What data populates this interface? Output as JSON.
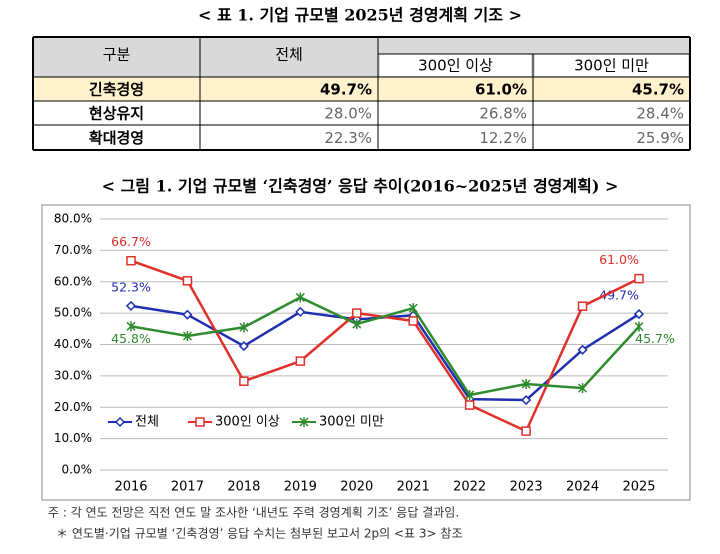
{
  "table": {
    "title": "< 표 1. 기업 규모별 2025년 경영계획 기조 >",
    "header": [
      "구분",
      "전체",
      "300인 이상",
      "300인 미만"
    ],
    "rows": [
      [
        "긴축경영",
        "49.7%",
        "61.0%",
        "45.7%"
      ],
      [
        "현상유지",
        "28.0%",
        "26.8%",
        "28.4%"
      ],
      [
        "확대경영",
        "22.3%",
        "12.2%",
        "25.9%"
      ]
    ]
  },
  "chart_data": {
    "type": "line",
    "title": "< 그림 1. 기업 규모별 ‘긴축경영’ 응답 추이(2016~2025년 경영계획) >",
    "categories": [
      "2016",
      "2017",
      "2018",
      "2019",
      "2020",
      "2021",
      "2022",
      "2023",
      "2024",
      "2025"
    ],
    "series": [
      {
        "name": "전체",
        "color": "#1f2fb0",
        "marker": "diamond",
        "values": [
          52.3,
          49.5,
          39.5,
          50.4,
          48.0,
          49.3,
          22.6,
          22.3,
          38.3,
          49.7
        ],
        "value_labels": [
          "52.3%",
          null,
          null,
          null,
          null,
          null,
          null,
          null,
          null,
          "49.7%"
        ]
      },
      {
        "name": "300인 이상",
        "color": "#e0302a",
        "marker": "square",
        "values": [
          66.7,
          60.3,
          28.3,
          34.7,
          50.0,
          47.5,
          20.7,
          12.4,
          52.2,
          61.0
        ],
        "value_labels": [
          "66.7%",
          null,
          null,
          null,
          null,
          null,
          null,
          null,
          null,
          "61.0%"
        ]
      },
      {
        "name": "300인 미만",
        "color": "#2e8b2e",
        "marker": "star",
        "values": [
          45.8,
          42.7,
          45.5,
          55.0,
          46.5,
          51.6,
          23.9,
          27.4,
          26.1,
          45.7
        ],
        "value_labels": [
          "45.8%",
          null,
          null,
          null,
          null,
          null,
          null,
          null,
          null,
          "45.7%"
        ]
      }
    ],
    "ylim": [
      0,
      80
    ],
    "yticks": [
      {
        "value": 0,
        "label": "0.0%"
      },
      {
        "value": 10,
        "label": "10.0%"
      },
      {
        "value": 20,
        "label": "20.0%"
      },
      {
        "value": 30,
        "label": "30.0%"
      },
      {
        "value": 40,
        "label": "40.0%"
      },
      {
        "value": 50,
        "label": "50.0%"
      },
      {
        "value": 60,
        "label": "60.0%"
      },
      {
        "value": 70,
        "label": "70.0%"
      },
      {
        "value": 80,
        "label": "80.0%"
      }
    ],
    "grid": true,
    "legend": "lower-left"
  },
  "notes": [
    "주 : 각 연도 전망은 직전 연도 말 조사한 ‘내년도 주력 경영계획 기조’ 응답 결과임.",
    "＊ 연도별·기업 규모별 ‘긴축경영’ 응답 수치는 첨부된 보고서 2p의 <표 3> 참조"
  ]
}
